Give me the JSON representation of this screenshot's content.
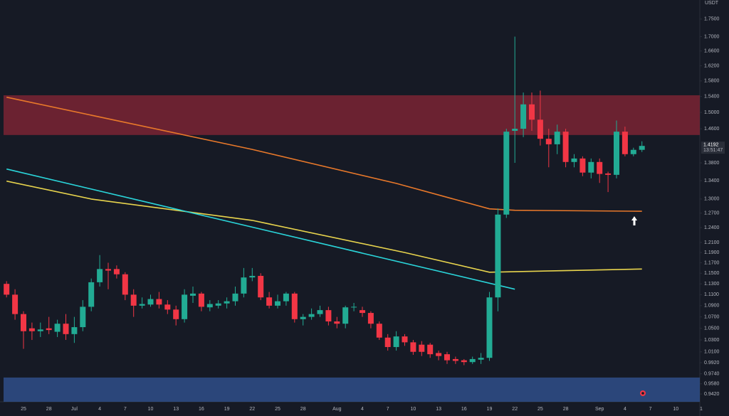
{
  "chart_data": {
    "type": "candlestick",
    "currency": "USDT",
    "log_scale": true,
    "grid": false,
    "up_color": "#22ab94",
    "down_color": "#f23645",
    "ylim": [
      0.93,
      1.806
    ],
    "yticks": [
      {
        "value": 1.75,
        "label": "1.7500"
      },
      {
        "value": 1.7,
        "label": "1.7000"
      },
      {
        "value": 1.66,
        "label": "1.6600"
      },
      {
        "value": 1.62,
        "label": "1.6200"
      },
      {
        "value": 1.58,
        "label": "1.5800"
      },
      {
        "value": 1.54,
        "label": "1.5400"
      },
      {
        "value": 1.5,
        "label": "1.5000"
      },
      {
        "value": 1.46,
        "label": "1.4600"
      },
      {
        "value": 1.38,
        "label": "1.3800"
      },
      {
        "value": 1.34,
        "label": "1.3400"
      },
      {
        "value": 1.3,
        "label": "1.3000"
      },
      {
        "value": 1.27,
        "label": "1.2700"
      },
      {
        "value": 1.24,
        "label": "1.2400"
      },
      {
        "value": 1.21,
        "label": "1.2100"
      },
      {
        "value": 1.19,
        "label": "1.1900"
      },
      {
        "value": 1.17,
        "label": "1.1700"
      },
      {
        "value": 1.15,
        "label": "1.1500"
      },
      {
        "value": 1.13,
        "label": "1.1300"
      },
      {
        "value": 1.11,
        "label": "1.1100"
      },
      {
        "value": 1.09,
        "label": "1.0900"
      },
      {
        "value": 1.07,
        "label": "1.0700"
      },
      {
        "value": 1.05,
        "label": "1.0500"
      },
      {
        "value": 1.03,
        "label": "1.0300"
      },
      {
        "value": 1.01,
        "label": "1.0100"
      },
      {
        "value": 0.992,
        "label": "0.9920"
      },
      {
        "value": 0.974,
        "label": "0.9740"
      },
      {
        "value": 0.958,
        "label": "0.9580"
      },
      {
        "value": 0.942,
        "label": "0.9420"
      }
    ],
    "categories": [
      null,
      null,
      "25",
      null,
      null,
      "28",
      null,
      null,
      "Jul",
      null,
      null,
      "4",
      null,
      null,
      "7",
      null,
      null,
      "10",
      null,
      null,
      "13",
      null,
      null,
      "16",
      null,
      null,
      "19",
      null,
      null,
      "22",
      null,
      null,
      "25",
      null,
      null,
      "28",
      null,
      null,
      null,
      "Aug",
      null,
      null,
      "4",
      null,
      null,
      "7",
      null,
      null,
      "10",
      null,
      null,
      "13",
      null,
      null,
      "16",
      null,
      null,
      "19",
      null,
      null,
      "22",
      null,
      null,
      "25",
      null,
      null,
      "28",
      null,
      null,
      null,
      "Sep",
      null,
      null,
      "4",
      null,
      null,
      "7",
      null,
      null,
      "10",
      null,
      null,
      "1"
    ],
    "open": [
      1.13,
      1.11,
      1.075,
      1.05,
      1.045,
      1.05,
      1.044,
      1.058,
      1.04,
      1.052,
      1.088,
      1.133,
      1.158,
      1.158,
      1.148,
      1.11,
      1.09,
      1.092,
      1.102,
      1.092,
      1.083,
      1.066,
      1.108,
      1.112,
      1.087,
      1.09,
      1.094,
      1.098,
      1.112,
      1.142,
      1.145,
      1.105,
      1.09,
      1.098,
      1.112,
      1.066,
      1.07,
      1.075,
      1.082,
      1.062,
      1.058,
      1.087,
      1.082,
      1.077,
      1.058,
      1.034,
      1.018,
      1.036,
      1.026,
      1.022,
      1.022,
      1.008,
      1.006,
      0.998,
      0.996,
      0.993,
      0.997,
      1.0,
      1.105,
      1.267,
      1.455,
      1.46,
      1.52,
      1.482,
      1.436,
      1.423,
      1.453,
      1.382,
      1.39,
      1.358,
      1.382,
      1.356,
      1.353,
      1.453,
      1.4,
      1.41,
      null,
      null,
      null,
      null,
      null,
      null,
      null
    ],
    "high": [
      1.135,
      1.12,
      1.08,
      1.06,
      1.06,
      1.07,
      1.065,
      1.075,
      1.07,
      1.1,
      1.14,
      1.185,
      1.17,
      1.165,
      1.152,
      1.12,
      1.105,
      1.11,
      1.115,
      1.1,
      1.09,
      1.12,
      1.125,
      1.115,
      1.1,
      1.1,
      1.105,
      1.125,
      1.16,
      1.16,
      1.15,
      1.115,
      1.11,
      1.115,
      1.115,
      1.075,
      1.085,
      1.09,
      1.088,
      1.07,
      1.09,
      1.095,
      1.088,
      1.08,
      1.062,
      1.04,
      1.045,
      1.04,
      1.03,
      1.028,
      1.025,
      1.012,
      1.01,
      1.002,
      0.998,
      1.002,
      1.008,
      1.115,
      1.28,
      1.46,
      1.7,
      1.55,
      1.55,
      1.555,
      1.46,
      1.47,
      1.46,
      1.4,
      1.395,
      1.39,
      1.39,
      1.36,
      1.48,
      1.465,
      1.415,
      1.43,
      null,
      null,
      null,
      null,
      null,
      null,
      null
    ],
    "low": [
      1.105,
      1.065,
      1.015,
      1.03,
      1.035,
      1.04,
      1.035,
      1.03,
      1.025,
      1.045,
      1.08,
      1.125,
      1.12,
      1.14,
      1.1,
      1.07,
      1.085,
      1.088,
      1.085,
      1.075,
      1.055,
      1.06,
      1.095,
      1.08,
      1.08,
      1.085,
      1.085,
      1.09,
      1.105,
      1.135,
      1.1,
      1.085,
      1.085,
      1.09,
      1.06,
      1.055,
      1.065,
      1.07,
      1.055,
      1.05,
      1.05,
      1.08,
      1.07,
      1.05,
      1.03,
      1.012,
      1.012,
      1.02,
      1.005,
      1.003,
      1.0,
      0.996,
      0.99,
      0.99,
      0.988,
      0.99,
      0.99,
      0.995,
      1.08,
      1.26,
      1.38,
      1.44,
      1.455,
      1.42,
      1.37,
      1.4,
      1.37,
      1.37,
      1.35,
      1.345,
      1.335,
      1.315,
      1.345,
      1.395,
      1.395,
      1.405,
      null,
      null,
      null,
      null,
      null,
      null,
      null
    ],
    "close": [
      1.11,
      1.075,
      1.045,
      1.045,
      1.048,
      1.047,
      1.058,
      1.04,
      1.052,
      1.088,
      1.133,
      1.158,
      1.155,
      1.148,
      1.11,
      1.09,
      1.093,
      1.102,
      1.092,
      1.083,
      1.066,
      1.11,
      1.112,
      1.088,
      1.093,
      1.094,
      1.098,
      1.112,
      1.142,
      1.145,
      1.105,
      1.09,
      1.098,
      1.112,
      1.066,
      1.07,
      1.075,
      1.082,
      1.062,
      1.058,
      1.087,
      1.088,
      1.077,
      1.058,
      1.034,
      1.018,
      1.036,
      1.026,
      1.01,
      1.01,
      1.006,
      1.003,
      0.996,
      0.995,
      0.993,
      0.998,
      1.0,
      1.105,
      1.267,
      1.453,
      1.46,
      1.52,
      1.482,
      1.436,
      1.423,
      1.453,
      1.382,
      1.39,
      1.358,
      1.382,
      1.355,
      1.353,
      1.453,
      1.4,
      1.41,
      1.4192,
      null,
      null,
      null,
      null,
      null,
      null,
      null
    ],
    "lines": [
      {
        "color": "#e8782a",
        "x": [
          0,
          29,
          46,
          57,
          60,
          75
        ],
        "values": [
          1.538,
          1.411,
          1.334,
          1.279,
          1.276,
          1.274
        ]
      },
      {
        "color": "#e8d44d",
        "x": [
          0,
          10,
          29,
          47,
          57,
          75
        ],
        "values": [
          1.339,
          1.3,
          1.255,
          1.19,
          1.152,
          1.158
        ]
      },
      {
        "color": "#2ad4d9",
        "x": [
          0,
          60
        ],
        "values": [
          1.366,
          1.12
        ]
      }
    ],
    "zones": [
      {
        "color": "#7a2534",
        "range": [
          1.445,
          1.543
        ]
      },
      {
        "color": "#2f4f8a",
        "range": [
          0.93,
          0.968
        ]
      }
    ],
    "last_price": 1.4192,
    "countdown": "13:51:47"
  }
}
